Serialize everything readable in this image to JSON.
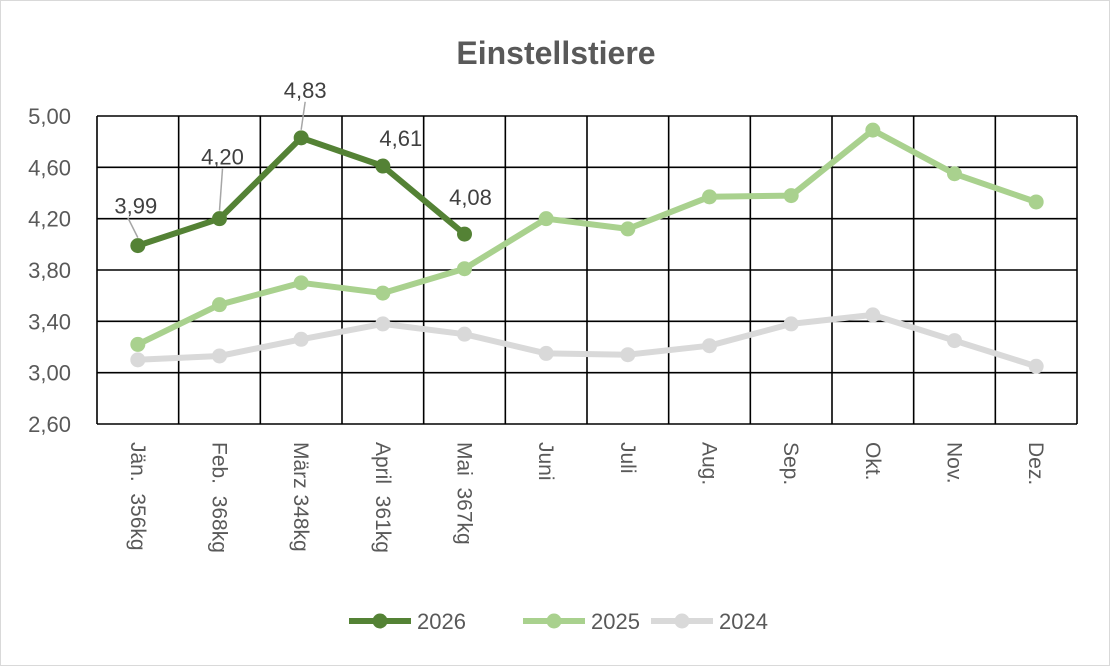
{
  "chart_data": {
    "type": "line",
    "title": "Einstellstiere",
    "xlabel": "",
    "ylabel": "",
    "ylim": [
      2.6,
      5.0
    ],
    "yticks": [
      "2,60",
      "3,00",
      "3,40",
      "3,80",
      "4,20",
      "4,60",
      "5,00"
    ],
    "categories": [
      "Jän.  356kg",
      "Feb.  368kg",
      "März 348kg",
      "April  361kg",
      "Mai  367kg",
      "Juni",
      "Juli",
      "Aug.",
      "Sep.",
      "Okt.",
      "Nov.",
      "Dez."
    ],
    "grid": true,
    "legend_position": "bottom",
    "series": [
      {
        "name": "2026",
        "color": "#548235",
        "values": [
          3.99,
          4.2,
          4.83,
          4.61,
          4.08,
          null,
          null,
          null,
          null,
          null,
          null,
          null
        ],
        "data_labels": [
          "3,99",
          "4,20",
          "4,83",
          "4,61",
          "4,08"
        ]
      },
      {
        "name": "2025",
        "color": "#a9d18e",
        "values": [
          3.22,
          3.53,
          3.7,
          3.62,
          3.81,
          4.2,
          4.12,
          4.37,
          4.38,
          4.89,
          4.55,
          4.33
        ]
      },
      {
        "name": "2024",
        "color": "#d9d9d9",
        "values": [
          3.1,
          3.13,
          3.26,
          3.38,
          3.3,
          3.15,
          3.14,
          3.21,
          3.38,
          3.45,
          3.25,
          3.05
        ]
      }
    ]
  }
}
